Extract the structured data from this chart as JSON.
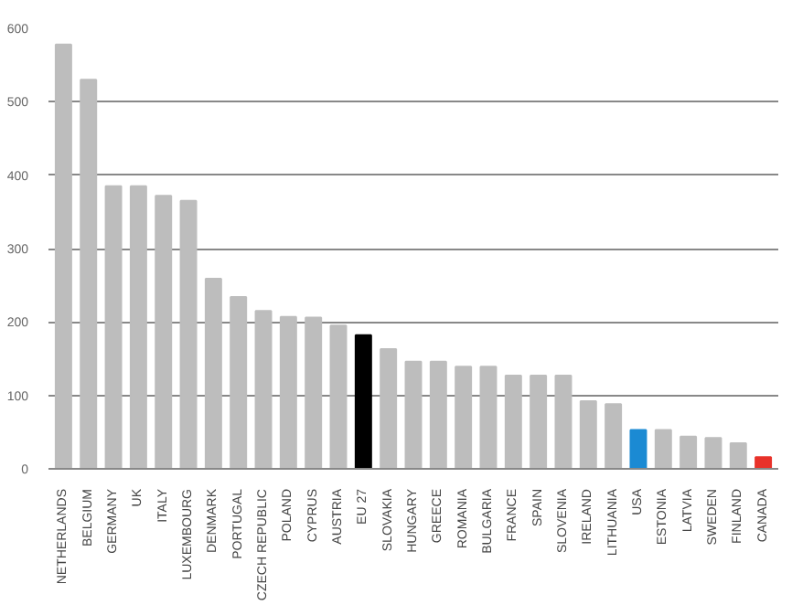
{
  "chart_data": {
    "type": "bar",
    "categories": [
      "NETHERLANDS",
      "BELGIUM",
      "GERMANY",
      "UK",
      "ITALY",
      "LUXEMBOURG",
      "DENMARK",
      "PORTUGAL",
      "CZECH REPUBLIC",
      "POLAND",
      "CYPRUS",
      "AUSTRIA",
      "EU 27",
      "SLOVAKIA",
      "HUNGARY",
      "GREECE",
      "ROMANIA",
      "BULGARIA",
      "FRANCE",
      "SPAIN",
      "SLOVENIA",
      "IRELAND",
      "LITHUANIA",
      "USA",
      "ESTONIA",
      "LATVIA",
      "SWEDEN",
      "FINLAND",
      "CANADA"
    ],
    "values": [
      578,
      530,
      385,
      385,
      372,
      365,
      259,
      234,
      215,
      207,
      206,
      195,
      182,
      163,
      146,
      146,
      139,
      139,
      127,
      127,
      127,
      92,
      88,
      53,
      53,
      44,
      42,
      35,
      16
    ],
    "colors": [
      "#bdbdbd",
      "#bdbdbd",
      "#bdbdbd",
      "#bdbdbd",
      "#bdbdbd",
      "#bdbdbd",
      "#bdbdbd",
      "#bdbdbd",
      "#bdbdbd",
      "#bdbdbd",
      "#bdbdbd",
      "#bdbdbd",
      "#000000",
      "#bdbdbd",
      "#bdbdbd",
      "#bdbdbd",
      "#bdbdbd",
      "#bdbdbd",
      "#bdbdbd",
      "#bdbdbd",
      "#bdbdbd",
      "#bdbdbd",
      "#bdbdbd",
      "#1b8ad3",
      "#bdbdbd",
      "#bdbdbd",
      "#bdbdbd",
      "#bdbdbd",
      "#e8322a"
    ],
    "ylim": [
      0,
      600
    ],
    "yticks": [
      0,
      100,
      200,
      300,
      400,
      500,
      600
    ],
    "grid": "y"
  }
}
